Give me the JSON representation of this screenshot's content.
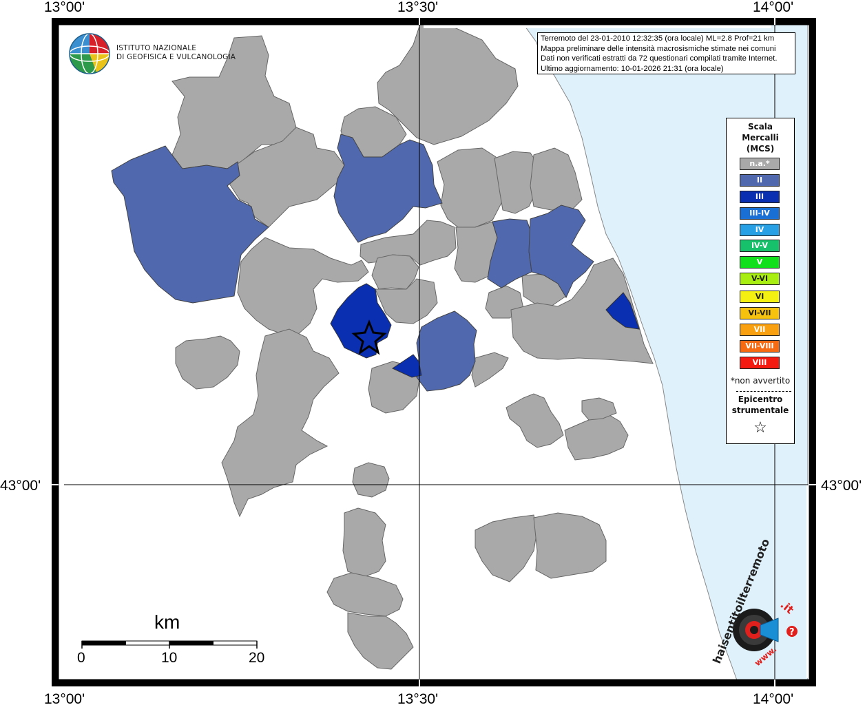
{
  "map": {
    "coordinates": {
      "lon_top_left": "13°00'",
      "lon_top_mid": "13°30'",
      "lon_top_right": "14°00'",
      "lon_bottom_left": "13°00'",
      "lon_bottom_mid": "13°30'",
      "lon_bottom_right": "14°00'",
      "lat_left": "43°00'",
      "lat_right": "43°00'"
    },
    "colors": {
      "sea": "#dff1fb",
      "na": "#a9a9a9",
      "II": "#5068ae",
      "III": "#0a2fb0",
      "coast": "#888888"
    }
  },
  "logo": {
    "line1": "ISTITUTO NAZIONALE",
    "line2": "DI GEOFISICA E VULCANOLOGIA",
    "icon": "globe-icon"
  },
  "info": {
    "line1": "Terremoto del 23-01-2010 12:32:35 (ora locale) ML=2.8 Prof=21 km",
    "line2": "Mappa preliminare delle intensità macrosismiche stimate nei comuni",
    "line3": "Dati non verificati estratti da 72 questionari compilati tramite Internet.",
    "line4": "Ultimo aggiornamento: 10-01-2026 21:31 (ora locale)"
  },
  "legend": {
    "title1": "Scala",
    "title2": "Mercalli",
    "title3": "(MCS)",
    "items": [
      {
        "label": "n.a.*",
        "color": "#a9a9a9"
      },
      {
        "label": "II",
        "color": "#5068ae"
      },
      {
        "label": "III",
        "color": "#0a2fb0"
      },
      {
        "label": "III-IV",
        "color": "#1a6fd4"
      },
      {
        "label": "IV",
        "color": "#27a0e6"
      },
      {
        "label": "IV-V",
        "color": "#17c06a"
      },
      {
        "label": "V",
        "color": "#10e01c"
      },
      {
        "label": "V-VI",
        "color": "#a8ee10"
      },
      {
        "label": "VI",
        "color": "#f4f012"
      },
      {
        "label": "VI-VII",
        "color": "#f7c20e"
      },
      {
        "label": "VII",
        "color": "#f8a010"
      },
      {
        "label": "VII-VIII",
        "color": "#f76a12"
      },
      {
        "label": "VIII",
        "color": "#f41a12"
      }
    ],
    "note": "*non avvertito",
    "epicenter1": "Epicentro",
    "epicenter2": "strumentale",
    "epicenter_icon": "star-icon",
    "epicenter_symbol": "☆"
  },
  "scale_bar": {
    "unit": "km",
    "ticks": [
      "0",
      "10",
      "20"
    ]
  },
  "badge": {
    "text1": "haisentitoilterremoto",
    "text2": ".it",
    "text3": "www.",
    "icon": "target-megaphone-icon",
    "question": "?"
  }
}
